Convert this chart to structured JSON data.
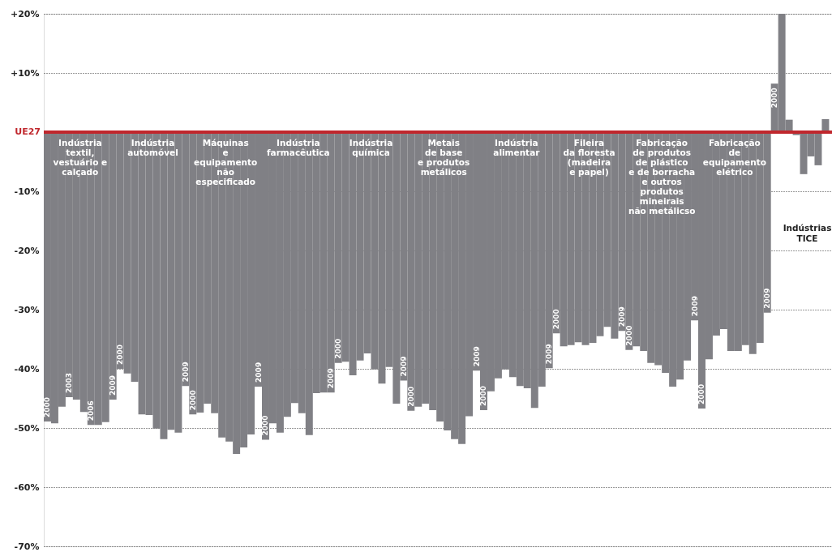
{
  "chart_data": {
    "type": "bar",
    "ylim": [
      -70,
      20
    ],
    "yticks": [
      {
        "value": 20,
        "label": "+20%"
      },
      {
        "value": 10,
        "label": "+10%"
      },
      {
        "value": -10,
        "label": "-10%"
      },
      {
        "value": -20,
        "label": "-20%"
      },
      {
        "value": -30,
        "label": "-30%"
      },
      {
        "value": -40,
        "label": "-40%"
      },
      {
        "value": -50,
        "label": "-50%"
      },
      {
        "value": -60,
        "label": "-60%"
      },
      {
        "value": -70,
        "label": "-70%"
      }
    ],
    "grid": "y",
    "tick_labels": "y",
    "color": "#808085",
    "categories": [
      "2000",
      null,
      null,
      "2003",
      null,
      null,
      "2006",
      null,
      null,
      "2009",
      "2000",
      null,
      null,
      null,
      null,
      null,
      null,
      null,
      null,
      "2009",
      "2000",
      null,
      null,
      null,
      null,
      null,
      null,
      null,
      null,
      "2009",
      "2000",
      null,
      null,
      null,
      null,
      null,
      null,
      null,
      null,
      "2009",
      "2000",
      null,
      null,
      null,
      null,
      null,
      null,
      null,
      null,
      "2009",
      "2000",
      null,
      null,
      null,
      null,
      null,
      null,
      null,
      null,
      "2009",
      "2000",
      null,
      null,
      null,
      null,
      null,
      null,
      null,
      null,
      "2009",
      "2000",
      null,
      null,
      null,
      null,
      null,
      null,
      null,
      null,
      "2009",
      "2000",
      null,
      null,
      null,
      null,
      null,
      null,
      null,
      null,
      "2009",
      "2000",
      null,
      null,
      null,
      null,
      null,
      null,
      null,
      null,
      "2009",
      "2000",
      null,
      null,
      null,
      null,
      null,
      null,
      null
    ],
    "values": [
      -48.9,
      -49.2,
      -46.4,
      -44.8,
      -45.2,
      -47.3,
      -49.5,
      -49.5,
      -49.0,
      -45.2,
      -40.0,
      -40.8,
      -42.2,
      -47.7,
      -47.8,
      -50.1,
      -51.9,
      -50.3,
      -50.8,
      -42.9,
      -47.7,
      -47.4,
      -45.9,
      -47.5,
      -51.6,
      -52.3,
      -54.4,
      -53.3,
      -51.1,
      -43.0,
      -52.0,
      -49.2,
      -50.8,
      -48.1,
      -45.8,
      -47.5,
      -51.2,
      -44.1,
      -44.0,
      -44.0,
      -39.0,
      -38.8,
      -41.1,
      -38.6,
      -37.4,
      -40.1,
      -42.5,
      -39.7,
      -45.9,
      -42.0,
      -47.1,
      -46.4,
      -45.9,
      -47.0,
      -48.9,
      -50.4,
      -51.9,
      -52.7,
      -48.0,
      -40.3,
      -47.0,
      -43.8,
      -41.6,
      -40.1,
      -41.4,
      -42.9,
      -43.3,
      -46.6,
      -43.0,
      -39.9,
      -34.0,
      -36.2,
      -36.0,
      -35.5,
      -36.0,
      -35.6,
      -34.5,
      -32.9,
      -34.9,
      -33.6,
      -36.8,
      -36.2,
      -37.0,
      -39.0,
      -39.4,
      -40.7,
      -43.0,
      -41.8,
      -38.6,
      -31.8,
      -46.7,
      -38.4,
      -34.4,
      -33.3,
      -37.0,
      -37.0,
      -36.0,
      -37.5,
      -35.6,
      -30.5,
      8.2,
      20,
      2.1,
      -0.5,
      -7.1,
      -4.1,
      -5.6,
      2.2
    ],
    "ref_lines": [
      {
        "axis": "y",
        "value": 0,
        "label": "UE27",
        "color": "#c0272d"
      }
    ],
    "annotations": [
      "Indústria\ntextil,\nvestuário e\ncalçado",
      "Indústria\nautomóvel",
      "Máquinas\ne\nequipamento\nnão\nespecificado",
      "Indústria\nfarmacêutica",
      "Indústria\nquímica",
      "Metais\nde base\ne produtos\nmetálicos",
      "Indústria\nalimentar",
      "Fileira\nda floresta\n(madeira\ne papel)",
      "Fabricação\nde produtos\nde plástico\ne de borracha\ne outros\nprodutos\nmineirais\nnão metálicso",
      "Fabricação\nde\nequipamento\nelétrico",
      "Indústrias\nTICE"
    ]
  }
}
